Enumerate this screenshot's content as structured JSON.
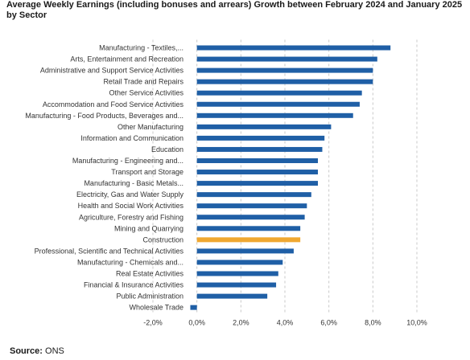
{
  "chart_data": {
    "type": "bar",
    "orientation": "horizontal",
    "title": "Average Weekly Earnings (including bonuses and arrears) Growth between February 2024 and January 2025 by Sector",
    "categories": [
      "Manufacturing - Textiles,...",
      "Arts, Entertainment and Recreation",
      "Administrative and Support Service Activities",
      "Retail Trade and Repairs",
      "Other Service Activities",
      "Accommodation and Food Service Activities",
      "Manufacturing - Food Products, Beverages and...",
      "Other Manufacturing",
      "Information and Communication",
      "Education",
      "Manufacturing - Engineering and...",
      "Transport and Storage",
      "Manufacturing - Basic Metals...",
      "Electricity, Gas and Water Supply",
      "Health and Social Work Activities",
      "Agriculture, Forestry and Fishing",
      "Mining and Quarrying",
      "Construction",
      "Professional, Scientific and Technical Activities",
      "Manufacturing - Chemicals and...",
      "Real Estate Activities",
      "Financial & Insurance Activities",
      "Public Administration",
      "Wholesale Trade"
    ],
    "values": [
      8.8,
      8.2,
      8.0,
      8.0,
      7.5,
      7.4,
      7.1,
      6.1,
      5.8,
      5.7,
      5.5,
      5.5,
      5.5,
      5.2,
      5.0,
      4.9,
      4.7,
      4.7,
      4.4,
      3.9,
      3.7,
      3.6,
      3.2,
      -0.3
    ],
    "highlight_category": "Construction",
    "xlim": [
      -2.0,
      10.0
    ],
    "xticks": [
      -2.0,
      0.0,
      2.0,
      4.0,
      6.0,
      8.0,
      10.0
    ],
    "xtick_labels": [
      "-2,0%",
      "0,0%",
      "2,0%",
      "4,0%",
      "6,0%",
      "8,0%",
      "10,0%"
    ],
    "grid": "vertical-dashed",
    "legend": "none",
    "colors": {
      "bar": "#1f5fa6",
      "highlight": "#f0a830",
      "grid": "#c8c8c8"
    }
  },
  "source": {
    "label": "Source:",
    "value": "ONS"
  }
}
